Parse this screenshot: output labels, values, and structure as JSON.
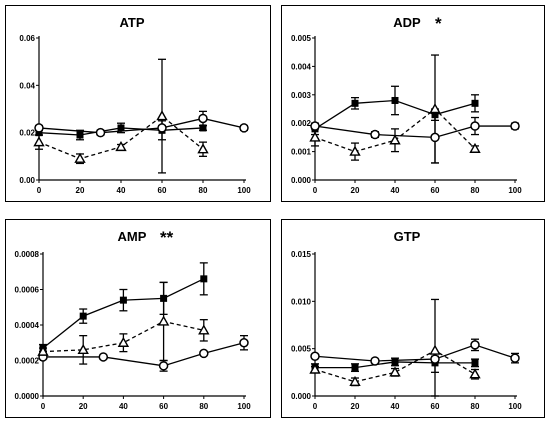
{
  "chart_data": [
    {
      "type": "line",
      "title": "ATP",
      "ylim": [
        0,
        0.06
      ],
      "yticks": [
        0,
        0.02,
        0.04,
        0.06
      ],
      "ytick_labels": [
        "0.00",
        "0.02",
        "0.04",
        "0.06"
      ],
      "xlim": [
        0,
        100
      ],
      "xticks": [
        0,
        20,
        40,
        60,
        80,
        100
      ],
      "xtick_labels": [
        "0",
        "20",
        "40",
        "60",
        "80",
        "100"
      ],
      "series": [
        {
          "marker": "square",
          "line": "solid",
          "x": [
            0,
            20,
            40,
            60,
            80
          ],
          "y": [
            0.02,
            0.019,
            0.022,
            0.021,
            0.022
          ],
          "err": [
            0.001,
            0.002,
            0.002,
            0.004,
            0.001
          ]
        },
        {
          "marker": "circle",
          "line": "solid",
          "x": [
            0,
            30,
            60,
            80,
            100
          ],
          "y": [
            0.022,
            0.02,
            0.022,
            0.026,
            0.022
          ],
          "err": [
            0.001,
            0.001,
            0.001,
            0.003,
            0.001
          ]
        },
        {
          "marker": "triangle",
          "line": "dashed",
          "x": [
            0,
            20,
            40,
            60,
            80
          ],
          "y": [
            0.016,
            0.009,
            0.014,
            0.027,
            0.013
          ],
          "err": [
            0.003,
            0.002,
            0.001,
            0.024,
            0.003
          ]
        }
      ]
    },
    {
      "type": "line",
      "title": "ADP",
      "annotation": "*",
      "ylim": [
        0,
        0.005
      ],
      "yticks": [
        0,
        0.001,
        0.002,
        0.003,
        0.004,
        0.005
      ],
      "ytick_labels": [
        "0.000",
        "0.001",
        "0.002",
        "0.003",
        "0.004",
        "0.005"
      ],
      "xlim": [
        0,
        100
      ],
      "xticks": [
        0,
        20,
        40,
        60,
        80,
        100
      ],
      "xtick_labels": [
        "0",
        "20",
        "40",
        "60",
        "80",
        "100"
      ],
      "series": [
        {
          "marker": "square",
          "line": "solid",
          "x": [
            0,
            20,
            40,
            60,
            80
          ],
          "y": [
            0.0018,
            0.0027,
            0.0028,
            0.0023,
            0.0027
          ],
          "err": [
            0.0002,
            0.0002,
            0.0005,
            0.0002,
            0.0003
          ]
        },
        {
          "marker": "circle",
          "line": "solid",
          "x": [
            0,
            30,
            60,
            80,
            100
          ],
          "y": [
            0.0019,
            0.0016,
            0.0015,
            0.0019,
            0.0019
          ],
          "err": [
            0.0001,
            0.0001,
            0.0009,
            0.0003,
            0.0001
          ]
        },
        {
          "marker": "triangle",
          "line": "dashed",
          "x": [
            0,
            20,
            40,
            60,
            80
          ],
          "y": [
            0.0015,
            0.001,
            0.0014,
            0.0025,
            0.0011
          ],
          "err": [
            0.0003,
            0.0003,
            0.0004,
            0.0019,
            0.0001
          ]
        }
      ]
    },
    {
      "type": "line",
      "title": "AMP",
      "annotation": "**",
      "ylim": [
        0,
        0.0008
      ],
      "yticks": [
        0,
        0.0002,
        0.0004,
        0.0006,
        0.0008
      ],
      "ytick_labels": [
        "0.0000",
        "0.0002",
        "0.0004",
        "0.0006",
        "0.0008"
      ],
      "xlim": [
        0,
        100
      ],
      "xticks": [
        0,
        20,
        40,
        60,
        80,
        100
      ],
      "xtick_labels": [
        "0",
        "20",
        "40",
        "60",
        "80",
        "100"
      ],
      "series": [
        {
          "marker": "square",
          "line": "solid",
          "x": [
            0,
            20,
            40,
            60,
            80
          ],
          "y": [
            0.00027,
            0.00045,
            0.00054,
            0.00055,
            0.00066
          ],
          "err": [
            2e-05,
            4e-05,
            6e-05,
            9e-05,
            9e-05
          ]
        },
        {
          "marker": "circle",
          "line": "solid",
          "x": [
            0,
            30,
            60,
            80,
            100
          ],
          "y": [
            0.00022,
            0.00022,
            0.00017,
            0.00024,
            0.0003
          ],
          "err": [
            1e-05,
            1e-05,
            3e-05,
            1e-05,
            4e-05
          ]
        },
        {
          "marker": "triangle",
          "line": "dashed",
          "x": [
            0,
            20,
            40,
            60,
            80
          ],
          "y": [
            0.00025,
            0.00026,
            0.0003,
            0.00042,
            0.00037
          ],
          "err": [
            2e-05,
            8e-05,
            5e-05,
            0.00022,
            6e-05
          ]
        }
      ]
    },
    {
      "type": "line",
      "title": "GTP",
      "ylim": [
        0,
        0.015
      ],
      "yticks": [
        0,
        0.005,
        0.01,
        0.015
      ],
      "ytick_labels": [
        "0.000",
        "0.005",
        "0.010",
        "0.015"
      ],
      "xlim": [
        0,
        100
      ],
      "xticks": [
        0,
        20,
        40,
        60,
        80,
        100
      ],
      "xtick_labels": [
        "0",
        "20",
        "40",
        "60",
        "80",
        "100"
      ],
      "series": [
        {
          "marker": "square",
          "line": "solid",
          "x": [
            0,
            20,
            40,
            60,
            80
          ],
          "y": [
            0.003,
            0.003,
            0.0036,
            0.0035,
            0.0035
          ],
          "err": [
            0.0004,
            0.0004,
            0.0004,
            0.001,
            0.0004
          ]
        },
        {
          "marker": "circle",
          "line": "solid",
          "x": [
            0,
            30,
            60,
            80,
            100
          ],
          "y": [
            0.0042,
            0.0037,
            0.0039,
            0.0054,
            0.004
          ],
          "err": [
            0.0002,
            0.0002,
            0.0003,
            0.0006,
            0.0005
          ]
        },
        {
          "marker": "triangle",
          "line": "dashed",
          "x": [
            0,
            20,
            40,
            60,
            80
          ],
          "y": [
            0.0028,
            0.0015,
            0.0025,
            0.0048,
            0.0023
          ],
          "err": [
            0.0003,
            0.0004,
            0.0004,
            0.0054,
            0.0005
          ]
        }
      ]
    }
  ]
}
